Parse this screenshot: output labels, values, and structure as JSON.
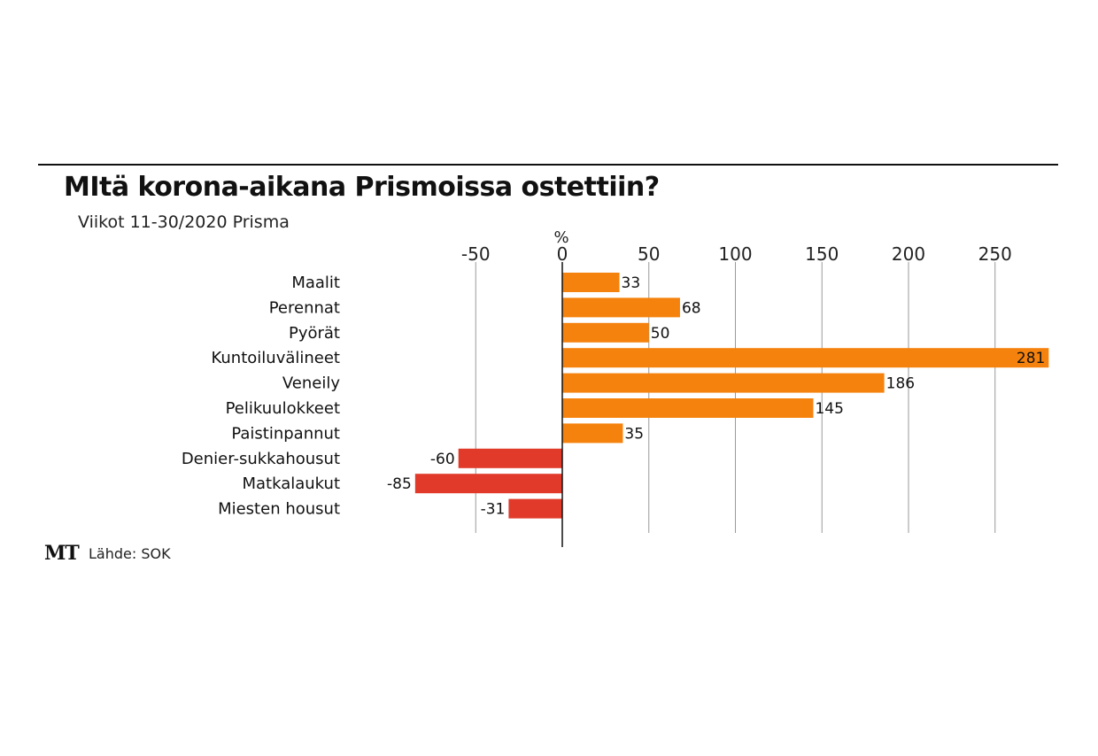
{
  "chart_data": {
    "type": "bar",
    "orientation": "horizontal",
    "title": "MItä korona-aikana Prismoissa ostettiin?",
    "subtitle": "Viikot 11-30/2020 Prisma",
    "unit": "%",
    "categories": [
      "Maalit",
      "Perennat",
      "Pyörät",
      "Kuntoiluvälineet",
      "Veneily",
      "Pelikuulokkeet",
      "Paistinpannut",
      "Denier-sukkahousut",
      "Matkalaukut",
      "Miesten housut"
    ],
    "values": [
      33,
      68,
      50,
      281,
      186,
      145,
      35,
      -60,
      -85,
      -31
    ],
    "value_labels": [
      "33",
      "68",
      "50",
      "281",
      "186",
      "145",
      "35",
      "-60",
      "-85",
      "-31"
    ],
    "ticks": [
      -50,
      0,
      50,
      100,
      150,
      200,
      250
    ],
    "tick_labels": [
      "-50",
      "0",
      "50",
      "100",
      "150",
      "200",
      "250"
    ],
    "xlim": [
      -100,
      285
    ],
    "grid": true,
    "colors": {
      "positive": "#f5820d",
      "negative": "#e13a2a",
      "grid": "#9a9a9a",
      "axis": "#111111"
    }
  },
  "footer": {
    "logo": "MT",
    "source": "Lähde: SOK"
  }
}
